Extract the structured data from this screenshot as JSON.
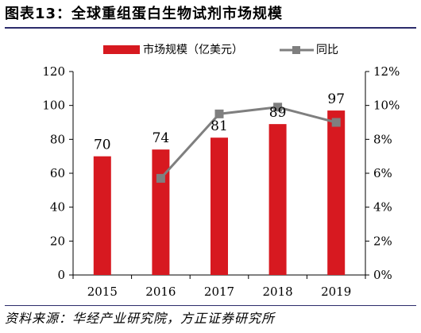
{
  "figure_title": "图表13：全球重组蛋白生物试剂市场规模",
  "source_note": "资料来源：华经产业研究院，方正证券研究所",
  "colors": {
    "bar": "#d71920",
    "line": "#7f7f7f",
    "axis": "#000000"
  },
  "chart_data": {
    "type": "bar",
    "categories": [
      "2015",
      "2016",
      "2017",
      "2018",
      "2019"
    ],
    "series": [
      {
        "name": "市场规模（亿美元）",
        "kind": "bar",
        "axis": "left",
        "values": [
          70,
          74,
          81,
          89,
          97
        ]
      },
      {
        "name": "同比",
        "kind": "line",
        "axis": "right",
        "values": [
          null,
          5.7,
          9.5,
          9.9,
          9.0
        ]
      }
    ],
    "y_left": {
      "min": 0,
      "max": 120,
      "ticks": [
        "0",
        "20",
        "40",
        "60",
        "80",
        "100",
        "120"
      ]
    },
    "y_right": {
      "min": 0,
      "max": 12,
      "ticks": [
        "0%",
        "2%",
        "4%",
        "6%",
        "8%",
        "10%",
        "12%"
      ]
    },
    "data_labels": [
      "70",
      "74",
      "81",
      "89",
      "97"
    ],
    "legend_position": "top",
    "grid": false
  }
}
